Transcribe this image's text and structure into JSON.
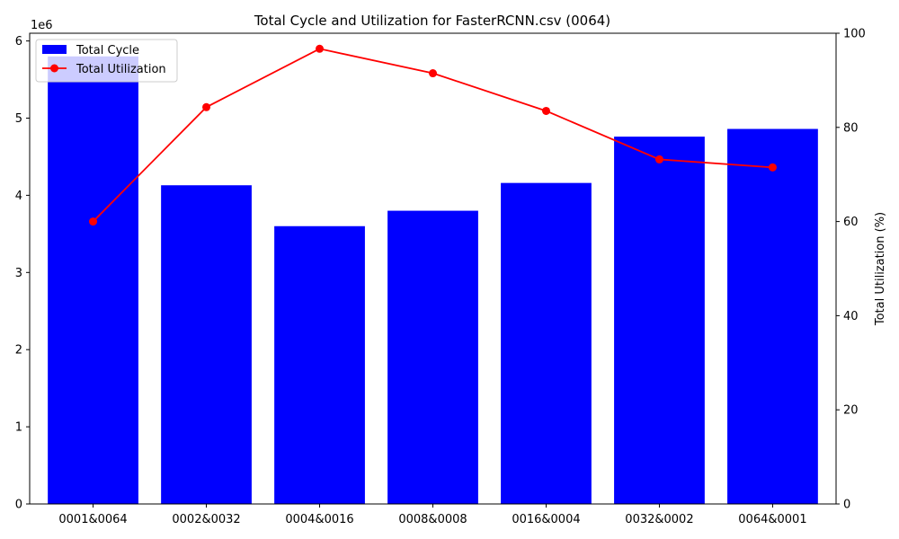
{
  "chart_data": {
    "type": "bar",
    "title": "Total Cycle and Utilization for FasterRCNN.csv (0064)",
    "categories": [
      "0001&0064",
      "0002&0032",
      "0004&0016",
      "0008&0008",
      "0016&0004",
      "0032&0002",
      "0064&0001"
    ],
    "series": [
      {
        "name": "Total Cycle",
        "type": "bar",
        "axis": "left",
        "color": "#0000ff",
        "values": [
          5800000,
          4130000,
          3600000,
          3800000,
          4160000,
          4760000,
          4860000
        ]
      },
      {
        "name": "Total Utilization",
        "type": "line",
        "axis": "right",
        "color": "#ff0000",
        "marker": "circle",
        "values": [
          60.0,
          84.3,
          96.7,
          91.5,
          83.5,
          73.2,
          71.5
        ]
      }
    ],
    "y_left": {
      "label": "",
      "lim": [
        0,
        6100000
      ],
      "ticks": [
        0,
        1000000,
        2000000,
        3000000,
        4000000,
        5000000,
        6000000
      ],
      "tick_labels": [
        "0",
        "1",
        "2",
        "3",
        "4",
        "5",
        "6"
      ],
      "offset_text": "1e6"
    },
    "y_right": {
      "label": "Total Utilization (%)",
      "lim": [
        0,
        100
      ],
      "ticks": [
        0,
        20,
        40,
        60,
        80,
        100
      ],
      "tick_labels": [
        "0",
        "20",
        "40",
        "60",
        "80",
        "100"
      ]
    },
    "xlabel": "",
    "grid": false,
    "legend": {
      "placement": "upper-left",
      "entries": [
        "Total Cycle",
        "Total Utilization"
      ]
    }
  }
}
